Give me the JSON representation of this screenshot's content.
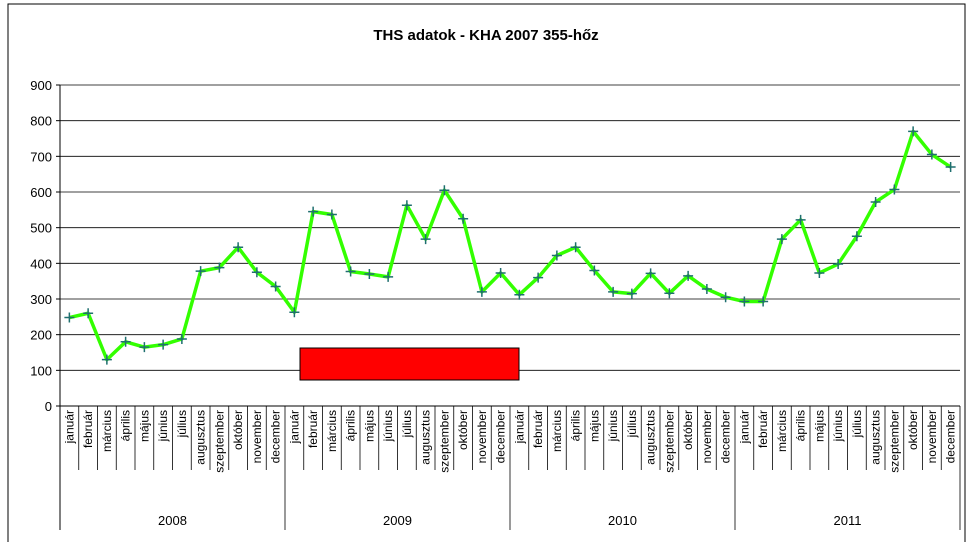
{
  "chart_data": {
    "type": "line",
    "title": "THS adatok - KHA 2007 355-hőz",
    "categories": [
      "január",
      "február",
      "március",
      "április",
      "május",
      "június",
      "július",
      "augusztus",
      "szeptember",
      "október",
      "november",
      "december",
      "január",
      "február",
      "március",
      "április",
      "május",
      "június",
      "július",
      "augusztus",
      "szeptember",
      "október",
      "november",
      "december",
      "január",
      "február",
      "március",
      "április",
      "május",
      "június",
      "július",
      "augusztus",
      "szeptember",
      "október",
      "november",
      "december",
      "január",
      "február",
      "március",
      "április",
      "május",
      "június",
      "július",
      "augusztus",
      "szeptember",
      "október",
      "november",
      "december"
    ],
    "groups": [
      "2008",
      "2009",
      "2010",
      "2011"
    ],
    "values": [
      248,
      260,
      130,
      180,
      165,
      172,
      188,
      378,
      388,
      445,
      375,
      335,
      263,
      545,
      537,
      377,
      370,
      362,
      563,
      468,
      605,
      525,
      320,
      373,
      312,
      360,
      422,
      445,
      380,
      320,
      315,
      372,
      316,
      365,
      328,
      305,
      293,
      293,
      468,
      522,
      373,
      398,
      476,
      572,
      607,
      770,
      705,
      670
    ],
    "color": "#33ff00",
    "marker_color": "#1f6f6f",
    "ylim": [
      0,
      900
    ],
    "yticks": [
      0,
      100,
      200,
      300,
      400,
      500,
      600,
      700,
      800,
      900
    ],
    "grid": true
  }
}
